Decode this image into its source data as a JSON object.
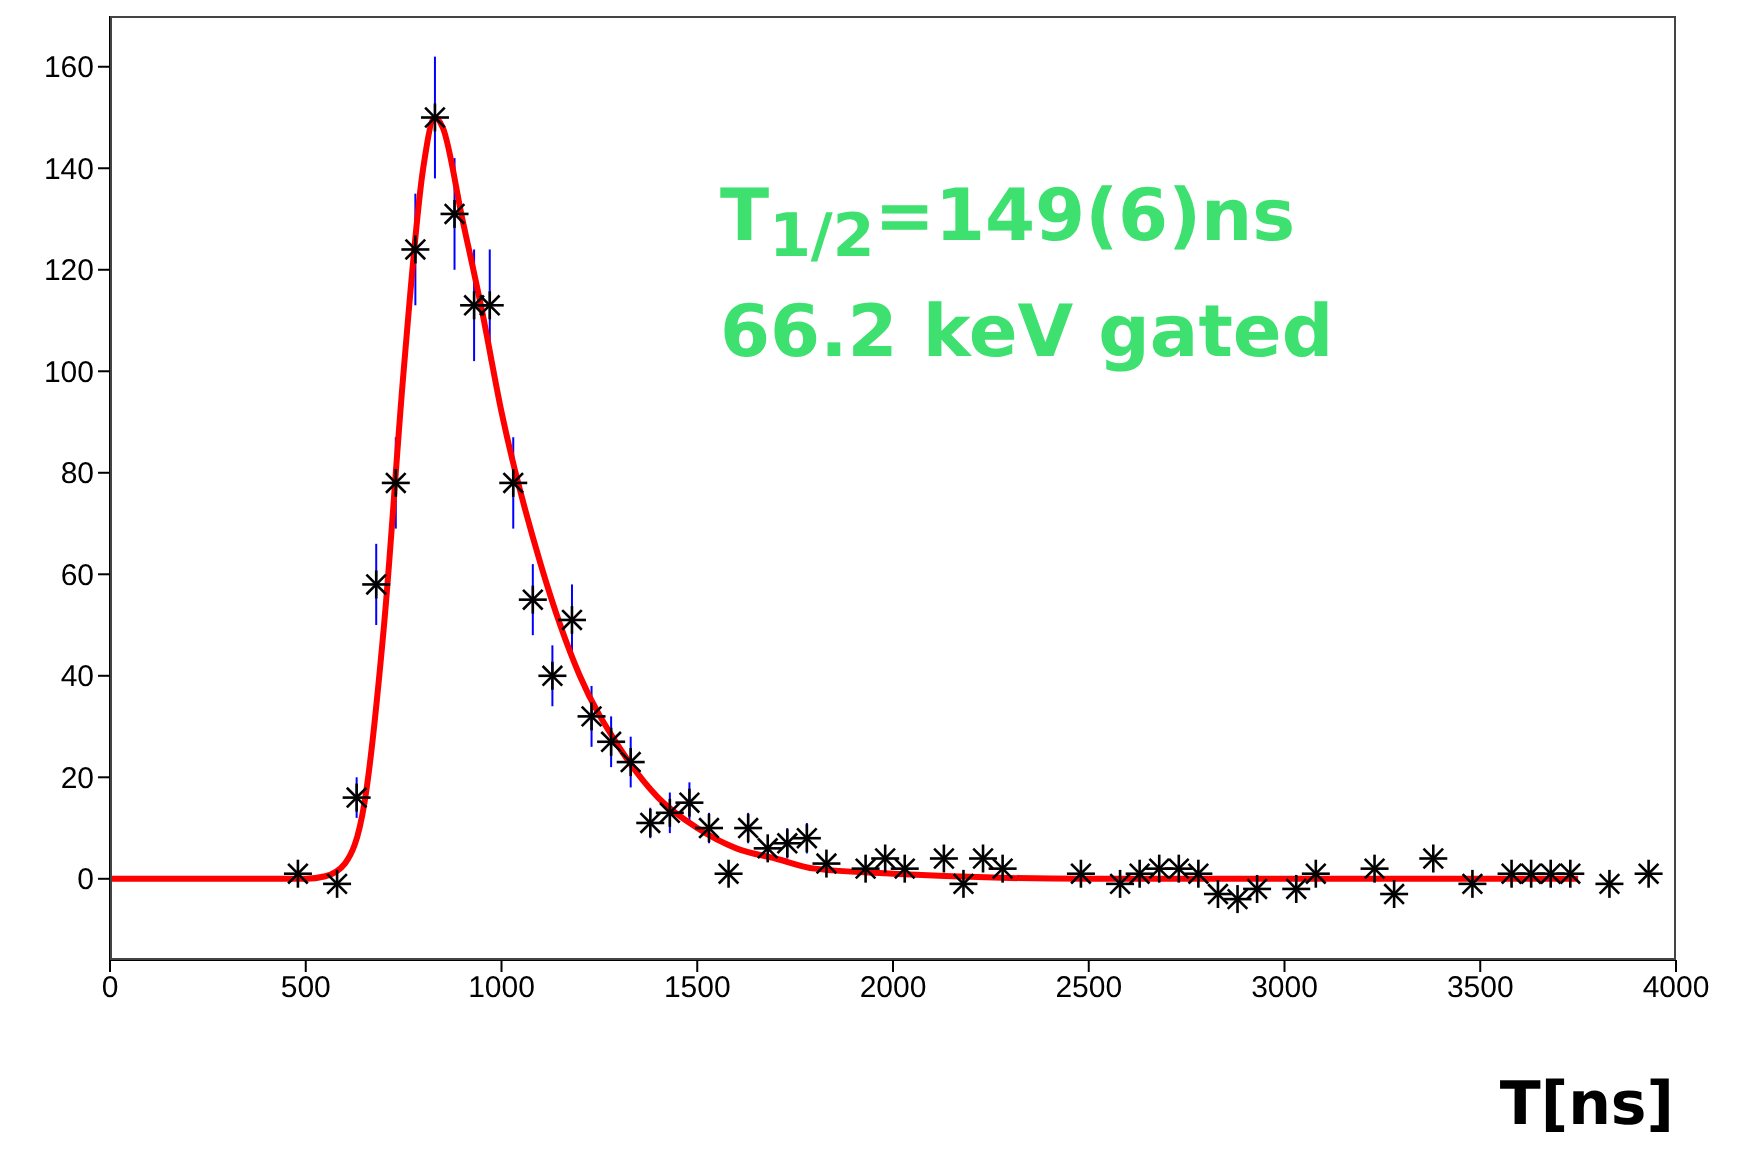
{
  "chart_data": {
    "type": "scatter",
    "xlabel": "T[ns]",
    "annotations": [
      "T$_{1/2}$=149(6)ns",
      "66.2 keV gated"
    ],
    "xlim": [
      0,
      4000
    ],
    "xticks": [
      0,
      500,
      1000,
      1500,
      2000,
      2500,
      3000,
      3500,
      4000
    ],
    "ylim": [
      -16,
      170
    ],
    "yticks": [
      0,
      20,
      40,
      60,
      80,
      100,
      120,
      140,
      160
    ],
    "marker": "cross",
    "series": [
      {
        "color": "#000000",
        "x": [
          480,
          580,
          630,
          680,
          730,
          780,
          830,
          880,
          930,
          970,
          1030,
          1080,
          1130,
          1180,
          1230,
          1280,
          1330,
          1380,
          1430,
          1480,
          1530,
          1580,
          1630,
          1680,
          1730,
          1780,
          1830,
          1930,
          1980,
          2030,
          2130,
          2180,
          2230,
          2280,
          2480,
          2580,
          2630,
          2680,
          2730,
          2780,
          2830,
          2880,
          2930,
          3030,
          3080,
          3230,
          3280,
          3380,
          3480,
          3580,
          3630,
          3680,
          3730,
          3830,
          3930
        ],
        "values": [
          1,
          -1,
          16,
          58,
          78,
          124,
          150,
          131,
          113,
          113,
          78,
          55,
          40,
          51,
          32,
          27,
          23,
          11,
          13,
          15,
          10,
          1,
          10,
          6,
          7,
          8,
          3,
          2,
          4,
          2,
          4,
          -1,
          4,
          2,
          1,
          -1,
          1,
          2,
          2,
          1,
          -3,
          -4,
          -2,
          -2,
          1,
          2,
          -3,
          4,
          -1,
          1,
          1,
          1,
          1,
          -1,
          1
        ],
        "errors": [
          null,
          null,
          4,
          8,
          9,
          11,
          12,
          11,
          11,
          11,
          9,
          7,
          6,
          7,
          6,
          5,
          5,
          3,
          4,
          4,
          3,
          null,
          3,
          null,
          3,
          3,
          null,
          null,
          null,
          null,
          null,
          null,
          null,
          null,
          null,
          null,
          null,
          null,
          null,
          null,
          null,
          null,
          null,
          null,
          null,
          null,
          null,
          null,
          null,
          null,
          null,
          null,
          null,
          null,
          null
        ]
      },
      {
        "type": "line",
        "color": "#ff0000",
        "line_style": "solid",
        "marker": "none",
        "x": [
          0,
          500,
          550,
          600,
          650,
          700,
          750,
          800,
          830,
          850,
          900,
          950,
          1000,
          1100,
          1200,
          1300,
          1400,
          1500,
          1600,
          1700,
          1800,
          2000,
          2500,
          3000,
          3750
        ],
        "values": [
          0,
          0,
          0.5,
          3,
          15,
          50,
          100,
          140,
          150,
          148,
          130,
          112,
          92,
          62,
          40,
          26,
          16,
          10,
          6,
          4,
          2,
          1,
          0,
          0,
          0
        ]
      }
    ]
  }
}
